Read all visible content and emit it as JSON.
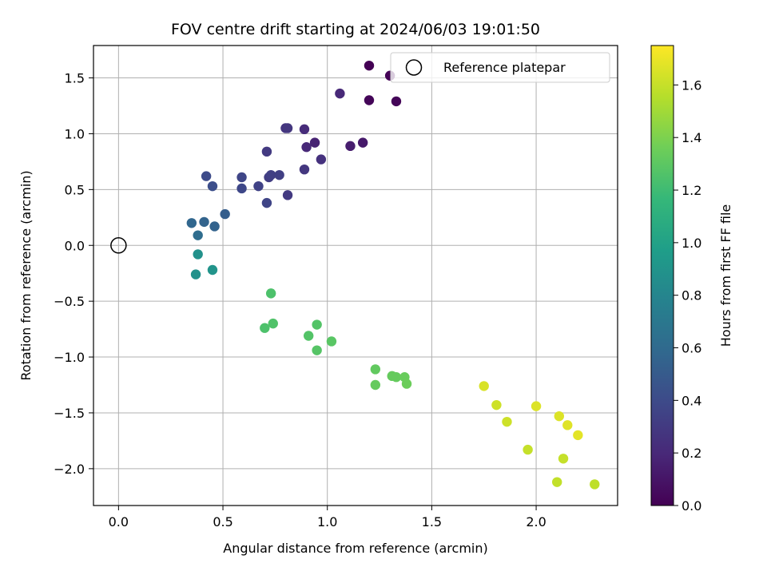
{
  "chart_data": {
    "type": "scatter",
    "title": "FOV centre drift starting at 2024/06/03 19:01:50",
    "xlabel": "Angular distance from reference (arcmin)",
    "ylabel": "Rotation from reference (arcmin)",
    "colorbar_label": "Hours from first FF file",
    "colormap": "viridis",
    "xlim": [
      -0.12,
      2.39
    ],
    "ylim": [
      -2.33,
      1.79
    ],
    "clim": [
      0.0,
      1.75
    ],
    "x_ticks": [
      "0.0",
      "0.5",
      "1.0",
      "1.5",
      "2.0"
    ],
    "y_ticks": [
      "−2.0",
      "−1.5",
      "−1.0",
      "−0.5",
      "0.0",
      "0.5",
      "1.0",
      "1.5"
    ],
    "colorbar_ticks": [
      "0.0",
      "0.2",
      "0.4",
      "0.6",
      "0.8",
      "1.0",
      "1.2",
      "1.4",
      "1.6"
    ],
    "grid": true,
    "legend_position": "top-right",
    "legend": {
      "label": "Reference platepar"
    },
    "reference_point": {
      "x": 0.0,
      "y": 0.0
    },
    "points": [
      {
        "x": 1.2,
        "y": 1.61,
        "t": 0.0
      },
      {
        "x": 1.3,
        "y": 1.52,
        "t": 0.01
      },
      {
        "x": 1.2,
        "y": 1.3,
        "t": 0.02
      },
      {
        "x": 1.33,
        "y": 1.29,
        "t": 0.02
      },
      {
        "x": 1.06,
        "y": 1.36,
        "t": 0.2
      },
      {
        "x": 1.17,
        "y": 0.92,
        "t": 0.12
      },
      {
        "x": 1.11,
        "y": 0.89,
        "t": 0.14
      },
      {
        "x": 0.94,
        "y": 0.92,
        "t": 0.17
      },
      {
        "x": 0.89,
        "y": 1.04,
        "t": 0.22
      },
      {
        "x": 0.9,
        "y": 0.88,
        "t": 0.2
      },
      {
        "x": 0.8,
        "y": 1.05,
        "t": 0.27
      },
      {
        "x": 0.81,
        "y": 1.05,
        "t": 0.28
      },
      {
        "x": 0.97,
        "y": 0.77,
        "t": 0.25
      },
      {
        "x": 0.89,
        "y": 0.68,
        "t": 0.28
      },
      {
        "x": 0.71,
        "y": 0.84,
        "t": 0.3
      },
      {
        "x": 0.72,
        "y": 0.61,
        "t": 0.32
      },
      {
        "x": 0.73,
        "y": 0.63,
        "t": 0.33
      },
      {
        "x": 0.77,
        "y": 0.63,
        "t": 0.33
      },
      {
        "x": 0.81,
        "y": 0.45,
        "t": 0.3
      },
      {
        "x": 0.67,
        "y": 0.53,
        "t": 0.35
      },
      {
        "x": 0.71,
        "y": 0.38,
        "t": 0.36
      },
      {
        "x": 0.59,
        "y": 0.61,
        "t": 0.37
      },
      {
        "x": 0.59,
        "y": 0.51,
        "t": 0.38
      },
      {
        "x": 0.42,
        "y": 0.62,
        "t": 0.4
      },
      {
        "x": 0.45,
        "y": 0.53,
        "t": 0.42
      },
      {
        "x": 0.51,
        "y": 0.28,
        "t": 0.52
      },
      {
        "x": 0.46,
        "y": 0.17,
        "t": 0.55
      },
      {
        "x": 0.41,
        "y": 0.21,
        "t": 0.56
      },
      {
        "x": 0.35,
        "y": 0.2,
        "t": 0.58
      },
      {
        "x": 0.38,
        "y": 0.09,
        "t": 0.62
      },
      {
        "x": 0.38,
        "y": -0.08,
        "t": 0.88
      },
      {
        "x": 0.37,
        "y": -0.26,
        "t": 0.88
      },
      {
        "x": 0.45,
        "y": -0.22,
        "t": 0.9
      },
      {
        "x": 0.73,
        "y": -0.43,
        "t": 1.25
      },
      {
        "x": 0.7,
        "y": -0.74,
        "t": 1.25
      },
      {
        "x": 0.74,
        "y": -0.7,
        "t": 1.26
      },
      {
        "x": 0.91,
        "y": -0.81,
        "t": 1.27
      },
      {
        "x": 0.95,
        "y": -0.71,
        "t": 1.27
      },
      {
        "x": 0.95,
        "y": -0.94,
        "t": 1.28
      },
      {
        "x": 1.02,
        "y": -0.86,
        "t": 1.29
      },
      {
        "x": 1.23,
        "y": -1.11,
        "t": 1.32
      },
      {
        "x": 1.31,
        "y": -1.17,
        "t": 1.33
      },
      {
        "x": 1.33,
        "y": -1.18,
        "t": 1.33
      },
      {
        "x": 1.37,
        "y": -1.18,
        "t": 1.34
      },
      {
        "x": 1.23,
        "y": -1.25,
        "t": 1.33
      },
      {
        "x": 1.38,
        "y": -1.24,
        "t": 1.35
      },
      {
        "x": 1.75,
        "y": -1.26,
        "t": 1.65
      },
      {
        "x": 1.81,
        "y": -1.43,
        "t": 1.62
      },
      {
        "x": 1.86,
        "y": -1.58,
        "t": 1.62
      },
      {
        "x": 2.0,
        "y": -1.44,
        "t": 1.66
      },
      {
        "x": 1.96,
        "y": -1.83,
        "t": 1.6
      },
      {
        "x": 2.11,
        "y": -1.53,
        "t": 1.66
      },
      {
        "x": 2.15,
        "y": -1.61,
        "t": 1.67
      },
      {
        "x": 2.2,
        "y": -1.7,
        "t": 1.68
      },
      {
        "x": 2.13,
        "y": -1.91,
        "t": 1.6
      },
      {
        "x": 2.1,
        "y": -2.12,
        "t": 1.59
      },
      {
        "x": 2.28,
        "y": -2.14,
        "t": 1.58
      }
    ]
  }
}
